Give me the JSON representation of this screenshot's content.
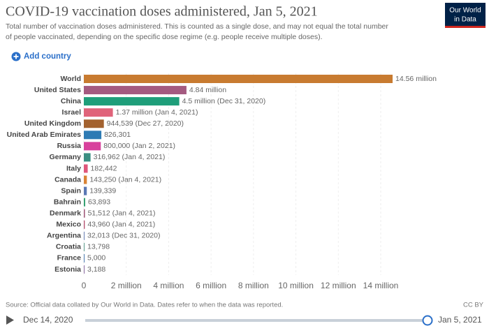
{
  "logo": [
    "Our World",
    "in Data"
  ],
  "controls": {
    "add_country": "Add country"
  },
  "chart_data": {
    "type": "hbar",
    "title": "COVID-19 vaccination doses administered, Jan 5, 2021",
    "subtitle": [
      "Total number of vaccination doses administered. This is counted as a single dose, and may not equal the total number",
      "of people vaccinated, depending on the specific dose regime (e.g. people receive multiple doses)."
    ],
    "categories": [
      "World",
      "United States",
      "China",
      "Israel",
      "United Kingdom",
      "United Arab Emirates",
      "Russia",
      "Germany",
      "Italy",
      "Canada",
      "Spain",
      "Bahrain",
      "Denmark",
      "Mexico",
      "Argentina",
      "Croatia",
      "France",
      "Estonia"
    ],
    "values": [
      14560000,
      4840000,
      4500000,
      1370000,
      944539,
      826301,
      800000,
      316962,
      182442,
      143250,
      139339,
      63893,
      51512,
      43960,
      32013,
      13798,
      5000,
      3188
    ],
    "value_labels": [
      "14.56 million",
      "4.84 million",
      "4.5 million (Dec 31, 2020)",
      "1.37 million (Jan 4, 2021)",
      "944,539 (Dec 27, 2020)",
      "826,301",
      "800,000 (Jan 2, 2021)",
      "316,962 (Jan 4, 2021)",
      "182,442",
      "143,250 (Jan 4, 2021)",
      "139,339",
      "63,893",
      "51,512 (Jan 4, 2021)",
      "43,960 (Jan 4, 2021)",
      "32,013 (Dec 31, 2020)",
      "13,798",
      "5,000",
      "3,188"
    ],
    "colors": [
      "#c87b30",
      "#a45a80",
      "#1f9e7a",
      "#e0637a",
      "#a3622f",
      "#2e7bb4",
      "#d8419c",
      "#3b8f82",
      "#e0567a",
      "#d98436",
      "#5a78b4",
      "#2f9e6e",
      "#a05a7a",
      "#b44e6e",
      "#6a80b4",
      "#5a9a8a",
      "#4a7ab0",
      "#8a6aa0"
    ],
    "xlim": [
      0,
      14560000
    ],
    "xticks": [
      0,
      {
        "value": 2000000,
        "label": "2 million"
      },
      {
        "value": 4000000,
        "label": "4 million"
      },
      {
        "value": 6000000,
        "label": "6 million"
      },
      {
        "value": 8000000,
        "label": "8 million"
      },
      {
        "value": 10000000,
        "label": "10 million"
      },
      {
        "value": 12000000,
        "label": "12 million"
      },
      {
        "value": 14000000,
        "label": "14 million"
      }
    ]
  },
  "footer": {
    "source": "Source: Official data collated by Our World in Data. Dates refer to when the data was reported.",
    "license": "CC BY"
  },
  "timeline": {
    "start": "Dec 14, 2020",
    "end": "Jan 5, 2021"
  }
}
